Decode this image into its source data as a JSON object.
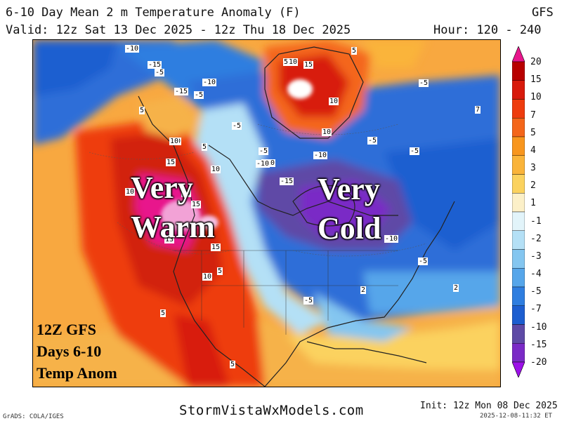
{
  "header": {
    "title": "6-10 Day Mean 2 m Temperature Anomaly (F)",
    "model": "GFS",
    "valid": "Valid: 12z Sat 13 Dec 2025 - 12z Thu 18 Dec 2025",
    "hours": "Hour: 120 - 240"
  },
  "overlay": {
    "west_line1": "Very",
    "west_line2": "Warm",
    "east_line1": "Very",
    "east_line2": "Cold",
    "stamp_line1": "12Z GFS",
    "stamp_line2": "Days 6-10",
    "stamp_line3": "Temp Anom"
  },
  "colorbar": {
    "labels": [
      "20",
      "15",
      "10",
      "7",
      "5",
      "4",
      "3",
      "2",
      "1",
      "-1",
      "-2",
      "-3",
      "-4",
      "-5",
      "-7",
      "-10",
      "-15",
      "-20"
    ],
    "colors": [
      "#e8168c",
      "#b80000",
      "#d81a0c",
      "#ee3c0e",
      "#f4661a",
      "#f8961e",
      "#fab43a",
      "#fbd25e",
      "#fcf0c8",
      "#e2f4fa",
      "#b4e0f6",
      "#84c6f0",
      "#56a6ea",
      "#2f7ee0",
      "#1d5ed0",
      "#5e4aa6",
      "#7a2ac6",
      "#9c10e8"
    ]
  },
  "map": {
    "background_colors": {
      "ocean_warm": "#f8a840",
      "warm_core": "#d22010",
      "hot_core": "#e41896",
      "cold_core": "#7a3ac8",
      "cold_mid": "#2f6ed8",
      "cool_light": "#c8e6f8",
      "land_line": "#222222"
    },
    "contour_labels": [
      "-10",
      "-15",
      "-5",
      "-15",
      "-10",
      "-5",
      "5",
      "10",
      "15",
      "10",
      "5",
      "10",
      "15",
      "10",
      "-5",
      "-10",
      "-15",
      "-10",
      "-5",
      "-5",
      "-5",
      "-10",
      "10",
      "15",
      "15",
      "10",
      "13",
      "15",
      "5",
      "10",
      "5",
      "5",
      "-5",
      "-5",
      "-10",
      "2",
      "-5",
      "2",
      "7",
      "5",
      "10",
      "5"
    ]
  },
  "footer": {
    "credit": "GrADS: COLA/IGES",
    "site": "StormVistaWxModels.com",
    "init": "Init: 12z Mon 08 Dec 2025",
    "timestamp": "2025-12-08-11:32 ET"
  }
}
